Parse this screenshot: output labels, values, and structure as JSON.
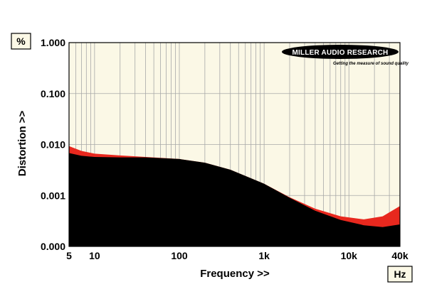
{
  "chart_data": {
    "type": "area",
    "xscale": "log",
    "yscale": "log",
    "xlabel": "Frequency >>",
    "ylabel": "Distortion >>",
    "y_unit": "%",
    "x_unit": "Hz",
    "xlim": [
      5,
      40000
    ],
    "ylim": [
      0.0001,
      1.0
    ],
    "x_tick_labels": [
      {
        "value": 5,
        "label": "5"
      },
      {
        "value": 10,
        "label": "10"
      },
      {
        "value": 100,
        "label": "100"
      },
      {
        "value": 1000,
        "label": "1k"
      },
      {
        "value": 10000,
        "label": "10k"
      },
      {
        "value": 40000,
        "label": "40k"
      }
    ],
    "y_tick_labels": [
      {
        "value": 1.0,
        "label": "1.000"
      },
      {
        "value": 0.1,
        "label": "0.100"
      },
      {
        "value": 0.01,
        "label": "0.010"
      },
      {
        "value": 0.001,
        "label": "0.001"
      },
      {
        "value": 0.0001,
        "label": "0.000"
      }
    ],
    "grid": true,
    "series": [
      {
        "color": "#e8281e",
        "x": [
          5,
          7,
          10,
          20,
          40,
          100,
          200,
          400,
          1000,
          2000,
          4000,
          8000,
          15000,
          25000,
          40000
        ],
        "y": [
          0.0093,
          0.0075,
          0.0066,
          0.0061,
          0.0057,
          0.0052,
          0.0044,
          0.0032,
          0.0017,
          0.00092,
          0.00055,
          0.00039,
          0.00034,
          0.00039,
          0.00062
        ]
      },
      {
        "color": "#000000",
        "x": [
          5,
          7,
          10,
          20,
          40,
          100,
          200,
          400,
          1000,
          2000,
          4000,
          8000,
          15000,
          25000,
          40000
        ],
        "y": [
          0.0068,
          0.006,
          0.0057,
          0.0056,
          0.0056,
          0.0052,
          0.0044,
          0.0032,
          0.0017,
          0.0009,
          0.0005,
          0.00033,
          0.00026,
          0.00024,
          0.00027
        ]
      }
    ]
  },
  "logo": {
    "name": "MILLER AUDIO RESEARCH",
    "tagline": "Getting the measure of sound quality"
  },
  "colors": {
    "plot_background": "#fbf8e6",
    "grid": "#a8a8a8",
    "frame": "#000000",
    "unit_box_background": "#fbf8e6"
  }
}
